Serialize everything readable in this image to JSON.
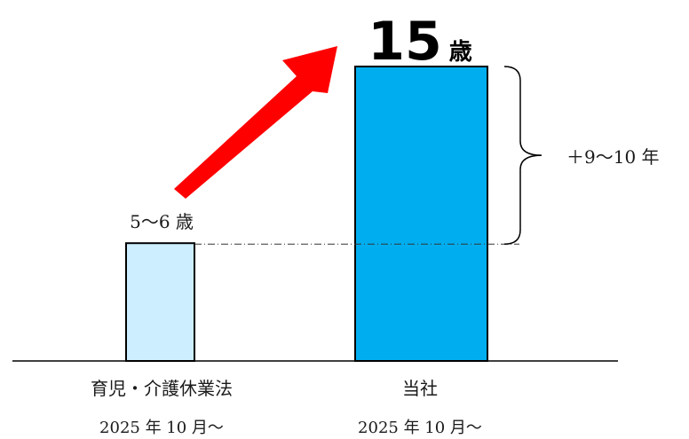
{
  "chart_data": {
    "type": "bar",
    "categories": [
      "育児・介護休業法",
      "当社"
    ],
    "dates": [
      "2025 年 10 月～",
      "2025 年 10 月～"
    ],
    "values": [
      6,
      15
    ],
    "value_labels": [
      "5～6 歳",
      "15 歳"
    ],
    "value_label_big_number": "15",
    "value_label_big_unit": "歳",
    "difference_label": "＋9～10 年",
    "colors": {
      "bar_law": "#cceeff",
      "bar_company": "#00aeef",
      "bar_stroke": "#000000",
      "arrow": "#ff0000"
    }
  }
}
